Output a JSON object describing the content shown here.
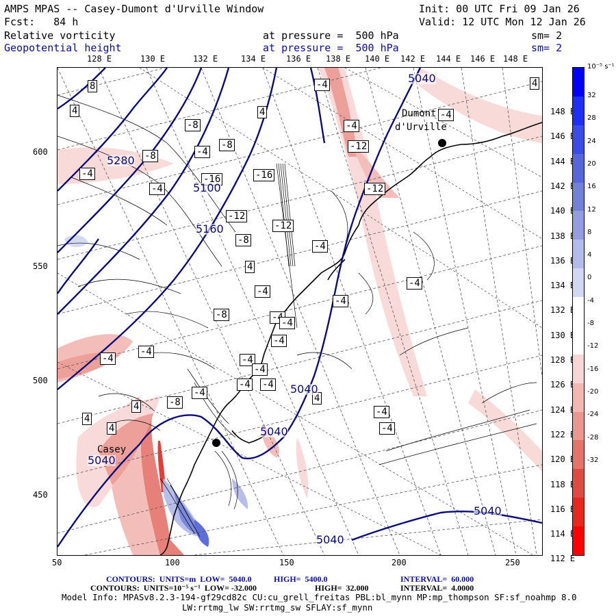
{
  "header": {
    "title": "AMPS MPAS -- Casey-Dumont d'Urville Window",
    "init": "Init: 00 UTC Fri 09 Jan 26",
    "fcst": "Fcst:   84 h",
    "valid": "Valid: 12 UTC Mon 12 Jan 26",
    "field1": "Relative vorticity",
    "field1_level": "at pressure =  500 hPa",
    "field1_sm": "sm= 2",
    "field2": "Geopotential height",
    "field2_level": "at pressure =  500 hPa",
    "field2_sm": "sm= 2"
  },
  "top_lon_labels": [
    "128 E",
    "130 E",
    "132 E",
    "134 E",
    "136 E",
    "138 E",
    "140 E",
    "142 E",
    "144 E",
    "146 E",
    "148 E"
  ],
  "right_lat_labels": [
    "148 E",
    "146 E",
    "144 E",
    "142 E",
    "140 E",
    "138 E",
    "136 E",
    "134 E",
    "132 E",
    "130 E",
    "128 E",
    "126 E",
    "124 E",
    "122 E",
    "120 E",
    "118 E",
    "116 E",
    "114 E",
    "112 E"
  ],
  "x_axis_labels": [
    "50",
    "100",
    "150",
    "200",
    "250"
  ],
  "y_axis_labels": [
    "600",
    "550",
    "500",
    "450"
  ],
  "colorbar": {
    "unit_label": "10⁻⁵ s⁻¹",
    "ticks": [
      "32",
      "28",
      "24",
      "20",
      "16",
      "12",
      "8",
      "4",
      "0",
      "-4",
      "-8",
      "-12",
      "-16",
      "-20",
      "-24",
      "-28",
      "-32"
    ],
    "colors_top_to_bottom": [
      "#0000ff",
      "#1f2ef3",
      "#3a4be8",
      "#5667dc",
      "#7382d8",
      "#929edf",
      "#b3bbe8",
      "#d3d8f2",
      "#ffffff",
      "#ffffff",
      "#f7d7d5",
      "#f2b7b3",
      "#ec9690",
      "#e5736b",
      "#e04a42",
      "#e7281f",
      "#ff0000"
    ]
  },
  "map": {
    "stations": [
      "Dumont",
      "d'Urville",
      "Casey"
    ],
    "height_labels": [
      "5040",
      "5040",
      "5040",
      "5040",
      "5040",
      "5040",
      "5100",
      "5160",
      "5280"
    ],
    "vort_labels": [
      "8",
      "4",
      "4",
      "4",
      "-4",
      "-4",
      "-4",
      "-12",
      "-8",
      "-8",
      "-8",
      "-4",
      "-4",
      "-4",
      "-16",
      "-16",
      "-12",
      "-12",
      "-12",
      "-8",
      "-4",
      "4",
      "-4",
      "-4",
      "-4",
      "-4",
      "-8",
      "-4",
      "-4",
      "-4",
      "-4",
      "-4",
      "-4",
      "-4",
      "4",
      "4",
      "4",
      "-8",
      "-4",
      "-4",
      "4",
      "-4",
      "-4"
    ]
  },
  "footer": {
    "line1_a": "CONTOURS:  UNITS=m  LOW=  5040.0",
    "line1_b": "HIGH=  5400.0",
    "line1_c": "INTERVAL=  60.000",
    "line2_a": "CONTOURS:  UNITS=10⁻⁵ s⁻¹  LOW= -32.000",
    "line2_b": "HIGH=  32.000",
    "line2_c": "INTERVAL=  4.0000",
    "line3": "Model Info: MPASv8.2.3-194-gf29cd82c CU:cu_grell_freitas PBL:bl_mynn MP:mp_thompson SF:sf_noahmp 8.0",
    "line4": "LW:rrtmg_lw SW:rrtmg_sw SFLAY:sf_mynn"
  }
}
